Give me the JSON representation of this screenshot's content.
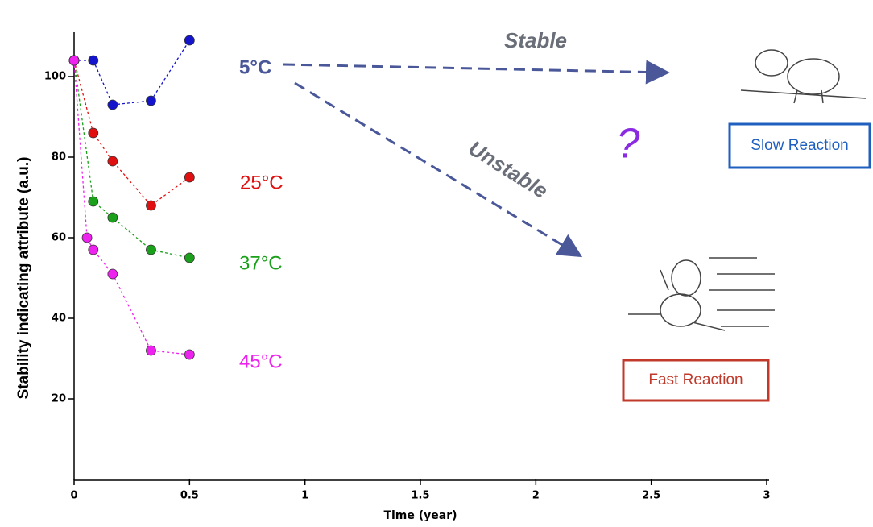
{
  "chart_data": {
    "type": "line",
    "x_label": "Time (year)",
    "y_label": "Stability indicating attribute (a.u.)",
    "xlim": [
      0,
      3
    ],
    "ylim": [
      0,
      110
    ],
    "xticks": [
      0,
      0.5,
      1,
      1.5,
      2,
      2.5,
      3
    ],
    "yticks": [
      20,
      40,
      60,
      80,
      100
    ],
    "series": [
      {
        "name": "5°C",
        "color": "#1414cc",
        "x": [
          0,
          0.083,
          0.167,
          0.333,
          0.5
        ],
        "values": [
          104,
          104,
          93,
          94,
          109
        ]
      },
      {
        "name": "25°C",
        "color": "#e01010",
        "x": [
          0,
          0.083,
          0.167,
          0.333,
          0.5
        ],
        "values": [
          104,
          86,
          79,
          68,
          75
        ]
      },
      {
        "name": "37°C",
        "color": "#1aa01a",
        "x": [
          0,
          0.083,
          0.167,
          0.333,
          0.5
        ],
        "values": [
          104,
          69,
          65,
          57,
          55
        ]
      },
      {
        "name": "45°C",
        "color": "#ee22ee",
        "x": [
          0,
          0.056,
          0.083,
          0.167,
          0.333,
          0.5
        ],
        "values": [
          104,
          60,
          57,
          51,
          32,
          31
        ]
      }
    ],
    "annotations": {
      "stable": "Stable",
      "unstable": "Unstable",
      "question": "?",
      "slow": "Slow Reaction",
      "fast": "Fast Reaction"
    }
  }
}
